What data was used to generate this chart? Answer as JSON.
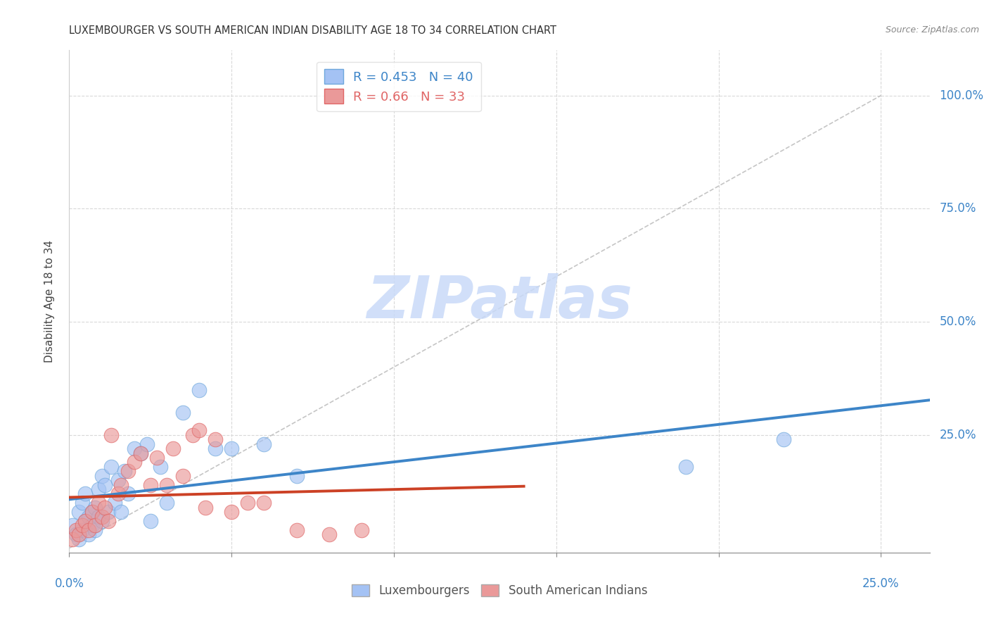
{
  "title": "LUXEMBOURGER VS SOUTH AMERICAN INDIAN DISABILITY AGE 18 TO 34 CORRELATION CHART",
  "source": "Source: ZipAtlas.com",
  "ylabel": "Disability Age 18 to 34",
  "xlim": [
    0.0,
    0.265
  ],
  "ylim": [
    -0.01,
    1.1
  ],
  "R_blue": 0.453,
  "N_blue": 40,
  "R_pink": 0.66,
  "N_pink": 33,
  "blue_color": "#a4c2f4",
  "blue_edge": "#6fa8dc",
  "pink_color": "#ea9999",
  "pink_edge": "#e06666",
  "blue_line_color": "#3d85c8",
  "pink_line_color": "#cc4125",
  "diagonal_color": "#b7b7b7",
  "watermark": "ZIPatlas",
  "watermark_color": "#c9daf8",
  "legend_label_blue": "Luxembourgers",
  "legend_label_pink": "South American Indians",
  "blue_scatter_x": [
    0.001,
    0.002,
    0.003,
    0.003,
    0.004,
    0.004,
    0.005,
    0.005,
    0.006,
    0.006,
    0.007,
    0.007,
    0.008,
    0.008,
    0.009,
    0.009,
    0.01,
    0.01,
    0.011,
    0.012,
    0.013,
    0.014,
    0.015,
    0.016,
    0.017,
    0.018,
    0.02,
    0.022,
    0.024,
    0.025,
    0.028,
    0.03,
    0.035,
    0.04,
    0.045,
    0.05,
    0.06,
    0.07,
    0.19,
    0.22
  ],
  "blue_scatter_y": [
    0.05,
    0.03,
    0.02,
    0.08,
    0.04,
    0.1,
    0.12,
    0.06,
    0.07,
    0.03,
    0.08,
    0.05,
    0.09,
    0.04,
    0.13,
    0.07,
    0.16,
    0.06,
    0.14,
    0.08,
    0.18,
    0.1,
    0.15,
    0.08,
    0.17,
    0.12,
    0.22,
    0.21,
    0.23,
    0.06,
    0.18,
    0.1,
    0.3,
    0.35,
    0.22,
    0.22,
    0.23,
    0.16,
    0.18,
    0.24
  ],
  "pink_scatter_x": [
    0.001,
    0.002,
    0.003,
    0.004,
    0.005,
    0.006,
    0.007,
    0.008,
    0.009,
    0.01,
    0.011,
    0.012,
    0.013,
    0.015,
    0.016,
    0.018,
    0.02,
    0.022,
    0.025,
    0.027,
    0.03,
    0.032,
    0.035,
    0.038,
    0.04,
    0.042,
    0.045,
    0.05,
    0.055,
    0.06,
    0.07,
    0.08,
    0.09
  ],
  "pink_scatter_y": [
    0.02,
    0.04,
    0.03,
    0.05,
    0.06,
    0.04,
    0.08,
    0.05,
    0.1,
    0.07,
    0.09,
    0.06,
    0.25,
    0.12,
    0.14,
    0.17,
    0.19,
    0.21,
    0.14,
    0.2,
    0.14,
    0.22,
    0.16,
    0.25,
    0.26,
    0.09,
    0.24,
    0.08,
    0.1,
    0.1,
    0.04,
    0.03,
    0.04
  ],
  "background_color": "#ffffff",
  "grid_color": "#d9d9d9",
  "ytick_vals": [
    0.25,
    0.5,
    0.75,
    1.0
  ],
  "ytick_labels": [
    "25.0%",
    "50.0%",
    "75.0%",
    "100.0%"
  ],
  "xtick_vals": [
    0.0,
    0.05,
    0.1,
    0.15,
    0.2,
    0.25
  ],
  "title_fontsize": 10.5,
  "axis_label_fontsize": 11,
  "tick_fontsize": 12,
  "source_fontsize": 9
}
